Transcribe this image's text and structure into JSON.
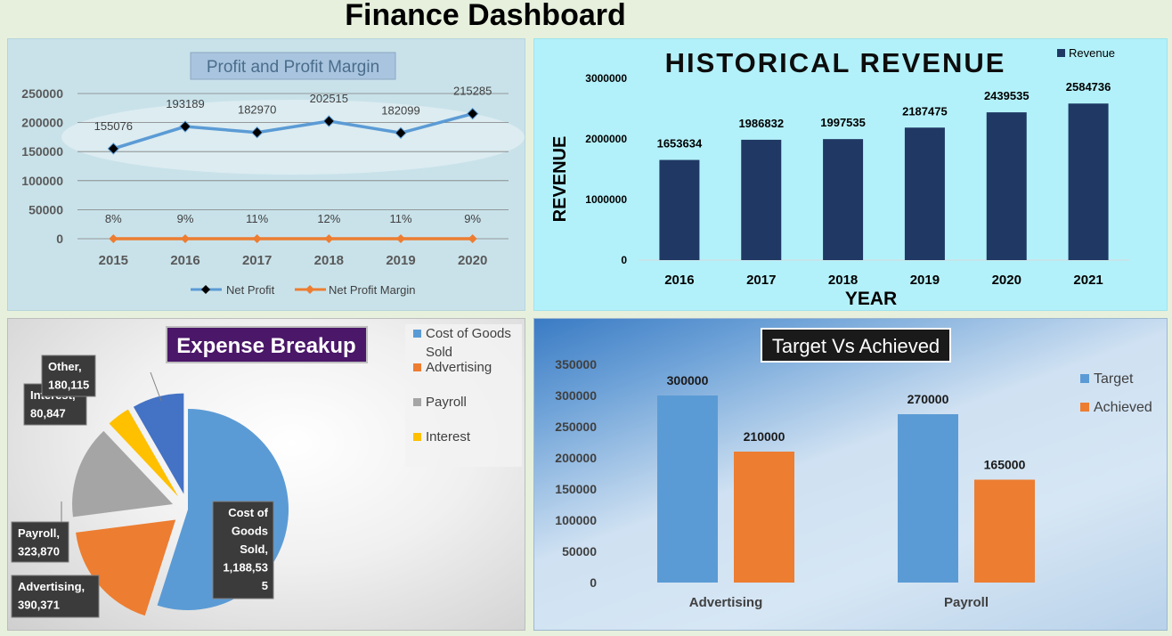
{
  "dashboard": {
    "title": "Finance Dashboard"
  },
  "chart_data": [
    {
      "id": "profit",
      "type": "line",
      "title": "Profit and Profit Margin",
      "x": [
        "2015",
        "2016",
        "2017",
        "2018",
        "2019",
        "2020"
      ],
      "series": [
        {
          "name": "Net Profit",
          "values": [
            155076,
            193189,
            182970,
            202515,
            182099,
            215285
          ],
          "labels": [
            "155076",
            "193189",
            "182970",
            "202515",
            "182099",
            "215285"
          ],
          "color": "#5b9bd5"
        },
        {
          "name": "Net Profit Margin",
          "values": [
            0.08,
            0.09,
            0.11,
            0.12,
            0.11,
            0.09
          ],
          "labels": [
            "8%",
            "9%",
            "11%",
            "12%",
            "11%",
            "9%"
          ],
          "color": "#ed7d31"
        }
      ],
      "yticks": [
        "0",
        "50000",
        "100000",
        "150000",
        "200000",
        "250000"
      ],
      "ylim": [
        0,
        250000
      ],
      "legend": "bottom"
    },
    {
      "id": "revenue",
      "type": "bar",
      "title": "HISTORICAL REVENUE",
      "categories": [
        "2016",
        "2017",
        "2018",
        "2019",
        "2020",
        "2021"
      ],
      "series": [
        {
          "name": "Revenue",
          "values": [
            1653634,
            1986832,
            1997535,
            2187475,
            2439535,
            2584736
          ],
          "color": "#203864"
        }
      ],
      "xlabel": "YEAR",
      "ylabel": "REVENUE",
      "yticks": [
        "0",
        "1000000",
        "2000000",
        "3000000"
      ],
      "ylim": [
        0,
        3000000
      ],
      "legend": "top-right"
    },
    {
      "id": "expense",
      "type": "pie",
      "title": "Expense Breakup",
      "slices": [
        {
          "name": "Cost of Goods Sold",
          "value": 1188535,
          "color": "#5b9bd5",
          "label": "Cost of Goods Sold, 1,188,535"
        },
        {
          "name": "Advertising",
          "value": 390371,
          "color": "#ed7d31",
          "label": "Advertising, 390,371"
        },
        {
          "name": "Payroll",
          "value": 323870,
          "color": "#a5a5a5",
          "label": "Payroll, 323,870"
        },
        {
          "name": "Interest",
          "value": 80847,
          "color": "#ffc000",
          "label": "Interest, 80,847"
        },
        {
          "name": "Other",
          "value": 180115,
          "color": "#4472c4",
          "label": "Other, 180,115"
        }
      ],
      "legend_entries": [
        "Cost of Goods Sold",
        "Advertising",
        "Payroll",
        "Interest"
      ],
      "legend": "top-right"
    },
    {
      "id": "target",
      "type": "bar",
      "title": "Target Vs Achieved",
      "categories": [
        "Advertising",
        "Payroll"
      ],
      "series": [
        {
          "name": "Target",
          "values": [
            300000,
            270000
          ],
          "color": "#5b9bd5"
        },
        {
          "name": "Achieved",
          "values": [
            210000,
            165000
          ],
          "color": "#ed7d31"
        }
      ],
      "yticks": [
        "0",
        "50000",
        "100000",
        "150000",
        "200000",
        "250000",
        "300000",
        "350000"
      ],
      "ylim": [
        0,
        350000
      ],
      "legend": "right"
    }
  ]
}
